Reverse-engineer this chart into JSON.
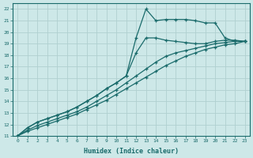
{
  "xlabel": "Humidex (Indice chaleur)",
  "ylabel": "",
  "xlim": [
    -0.5,
    23.5
  ],
  "ylim": [
    11,
    22.5
  ],
  "xtick_vals": [
    0,
    1,
    2,
    3,
    4,
    5,
    6,
    7,
    8,
    9,
    10,
    11,
    12,
    13,
    14,
    15,
    16,
    17,
    18,
    19,
    20,
    21,
    22,
    23
  ],
  "ytick_vals": [
    11,
    12,
    13,
    14,
    15,
    16,
    17,
    18,
    19,
    20,
    21,
    22
  ],
  "bg_color": "#cde8e8",
  "grid_color": "#b0d0d0",
  "line_color": "#1a6b6b",
  "lines": [
    {
      "x": [
        0,
        1,
        2,
        3,
        4,
        5,
        6,
        7,
        8,
        9,
        10,
        11,
        12,
        13,
        14,
        15,
        16,
        17,
        18,
        19,
        20,
        21,
        22,
        23
      ],
      "y": [
        11,
        11.7,
        12.2,
        12.5,
        12.8,
        13.1,
        13.5,
        14.0,
        14.5,
        15.1,
        15.6,
        16.2,
        19.5,
        22.0,
        21.0,
        21.1,
        21.1,
        21.1,
        21.0,
        20.8,
        20.8,
        19.5,
        19.2,
        19.2
      ]
    },
    {
      "x": [
        0,
        1,
        2,
        3,
        4,
        5,
        6,
        7,
        8,
        9,
        10,
        11,
        12,
        13,
        14,
        15,
        16,
        17,
        18,
        19,
        20,
        21,
        22,
        23
      ],
      "y": [
        11,
        11.7,
        12.2,
        12.5,
        12.8,
        13.1,
        13.5,
        14.0,
        14.5,
        15.1,
        15.6,
        16.2,
        18.2,
        19.5,
        19.5,
        19.3,
        19.2,
        19.1,
        19.0,
        19.0,
        19.2,
        19.3,
        19.3,
        19.2
      ]
    },
    {
      "x": [
        0,
        1,
        2,
        3,
        4,
        5,
        6,
        7,
        8,
        9,
        10,
        11,
        12,
        13,
        14,
        15,
        16,
        17,
        18,
        19,
        20,
        21,
        22,
        23
      ],
      "y": [
        11,
        11.5,
        11.9,
        12.2,
        12.5,
        12.8,
        13.1,
        13.5,
        14.0,
        14.5,
        15.0,
        15.6,
        16.2,
        16.8,
        17.4,
        17.9,
        18.2,
        18.4,
        18.6,
        18.8,
        19.0,
        19.1,
        19.2,
        19.2
      ]
    },
    {
      "x": [
        0,
        1,
        2,
        3,
        4,
        5,
        6,
        7,
        8,
        9,
        10,
        11,
        12,
        13,
        14,
        15,
        16,
        17,
        18,
        19,
        20,
        21,
        22,
        23
      ],
      "y": [
        11,
        11.4,
        11.7,
        12.0,
        12.3,
        12.6,
        12.9,
        13.3,
        13.7,
        14.1,
        14.6,
        15.1,
        15.6,
        16.1,
        16.6,
        17.1,
        17.5,
        17.9,
        18.2,
        18.5,
        18.7,
        18.9,
        19.0,
        19.2
      ]
    }
  ]
}
